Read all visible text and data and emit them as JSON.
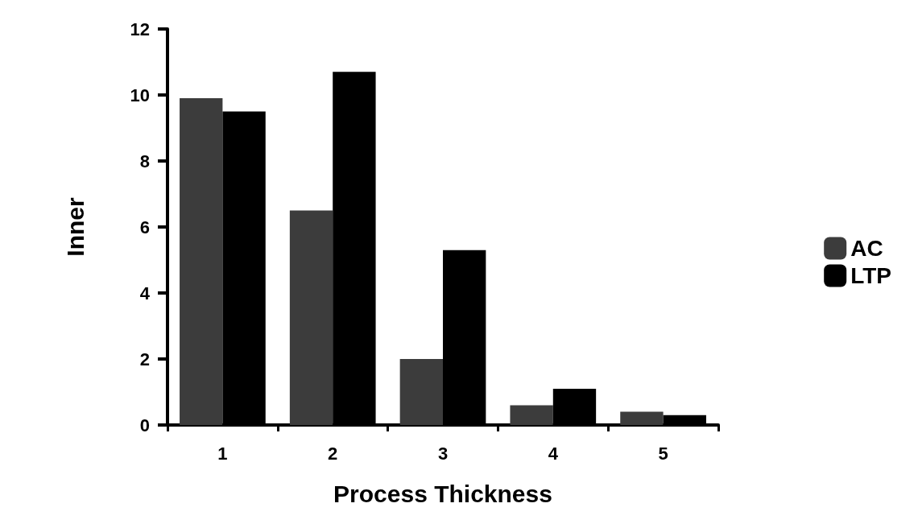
{
  "chart_data": {
    "type": "bar",
    "xlabel": "Process Thickness",
    "ylabel": "Inner",
    "categories": [
      "1",
      "2",
      "3",
      "4",
      "5"
    ],
    "series": [
      {
        "name": "AC",
        "color": "#3c3c3c",
        "values": [
          9.9,
          6.5,
          2.0,
          0.6,
          0.4
        ]
      },
      {
        "name": "LTP",
        "color": "#000000",
        "values": [
          9.5,
          10.7,
          5.3,
          1.1,
          0.3
        ]
      }
    ],
    "ylim": [
      0,
      12
    ],
    "yticks": [
      0,
      2,
      4,
      6,
      8,
      10,
      12
    ],
    "grid": false,
    "legend": "right"
  }
}
